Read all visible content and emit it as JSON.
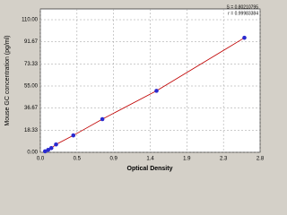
{
  "chart_data": {
    "type": "scatter",
    "xlabel": "Optical Density",
    "ylabel": "Mouse GC concentration (pg/ml)",
    "annotations": [
      "S = 0.80210795",
      "r = 0.99983384"
    ],
    "x": [
      0.06,
      0.1,
      0.14,
      0.2,
      0.42,
      0.79,
      1.48,
      2.6
    ],
    "series": [
      {
        "color": "#2a2ad0",
        "values": [
          0.8,
          2,
          3.5,
          6.5,
          14,
          27.5,
          51,
          95
        ]
      }
    ],
    "fit_color": "#c00000",
    "xlim": [
      0,
      2.8
    ],
    "xticks": [
      {
        "value": 0,
        "label": "0.0"
      },
      {
        "value": 0.4667,
        "label": "0.5"
      },
      {
        "value": 0.9333,
        "label": "0.9"
      },
      {
        "value": 1.4,
        "label": "1.4"
      },
      {
        "value": 1.8667,
        "label": "1.9"
      },
      {
        "value": 2.3333,
        "label": "2.3"
      },
      {
        "value": 2.8,
        "label": "2.8"
      }
    ],
    "ylim": [
      0,
      110
    ],
    "yticks": [
      {
        "value": 0,
        "label": "0.00"
      },
      18.33,
      {
        "value": 36.67,
        "label": "36.67"
      },
      {
        "value": 55,
        "label": "55.00"
      },
      73.33,
      91.67,
      {
        "value": 110,
        "label": "110.00"
      }
    ],
    "grid": true
  }
}
